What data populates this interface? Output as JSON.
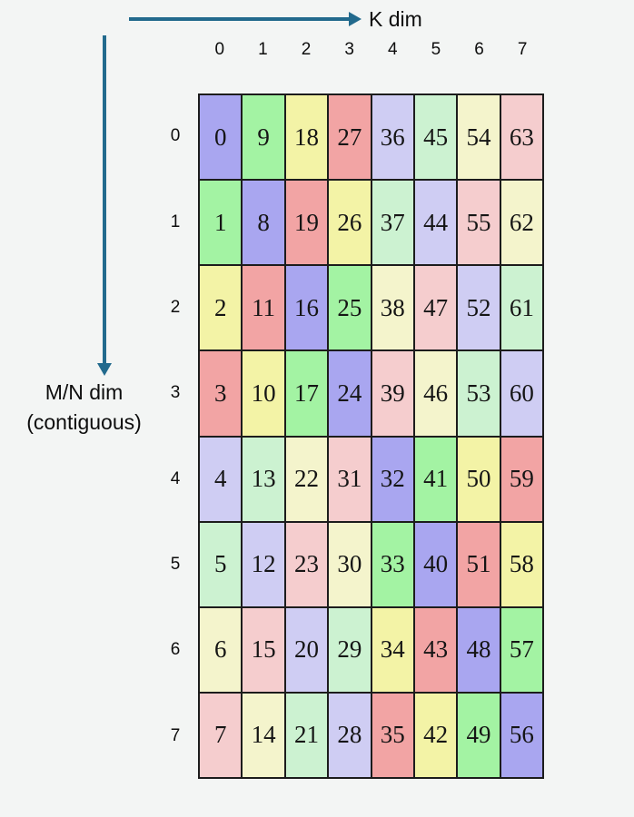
{
  "axes": {
    "k_dim_label": "K dim",
    "mn_dim_label_line1": "M/N dim",
    "mn_dim_label_line2": "(contiguous)"
  },
  "colors": {
    "background": "#f3f5f4",
    "arrow": "#226a8d",
    "grid_border": "#1c1c1c",
    "text": "#0d0d0d",
    "palette": {
      "P": "#a9a6f0",
      "G": "#a3f3a3",
      "Y": "#f3f3a6",
      "R": "#f2a4a4",
      "p": "#cfcdf3",
      "g": "#ccf2d1",
      "y": "#f4f4cc",
      "r": "#f5cdce"
    }
  },
  "col_headers": [
    "0",
    "1",
    "2",
    "3",
    "4",
    "5",
    "6",
    "7"
  ],
  "row_headers": [
    "0",
    "1",
    "2",
    "3",
    "4",
    "5",
    "6",
    "7"
  ],
  "grid": {
    "rows": [
      {
        "cells": [
          {
            "v": "0",
            "c": "P"
          },
          {
            "v": "9",
            "c": "G"
          },
          {
            "v": "18",
            "c": "Y"
          },
          {
            "v": "27",
            "c": "R"
          },
          {
            "v": "36",
            "c": "p"
          },
          {
            "v": "45",
            "c": "g"
          },
          {
            "v": "54",
            "c": "y"
          },
          {
            "v": "63",
            "c": "r"
          }
        ]
      },
      {
        "cells": [
          {
            "v": "1",
            "c": "G"
          },
          {
            "v": "8",
            "c": "P"
          },
          {
            "v": "19",
            "c": "R"
          },
          {
            "v": "26",
            "c": "Y"
          },
          {
            "v": "37",
            "c": "g"
          },
          {
            "v": "44",
            "c": "p"
          },
          {
            "v": "55",
            "c": "r"
          },
          {
            "v": "62",
            "c": "y"
          }
        ]
      },
      {
        "cells": [
          {
            "v": "2",
            "c": "Y"
          },
          {
            "v": "11",
            "c": "R"
          },
          {
            "v": "16",
            "c": "P"
          },
          {
            "v": "25",
            "c": "G"
          },
          {
            "v": "38",
            "c": "y"
          },
          {
            "v": "47",
            "c": "r"
          },
          {
            "v": "52",
            "c": "p"
          },
          {
            "v": "61",
            "c": "g"
          }
        ]
      },
      {
        "cells": [
          {
            "v": "3",
            "c": "R"
          },
          {
            "v": "10",
            "c": "Y"
          },
          {
            "v": "17",
            "c": "G"
          },
          {
            "v": "24",
            "c": "P"
          },
          {
            "v": "39",
            "c": "r"
          },
          {
            "v": "46",
            "c": "y"
          },
          {
            "v": "53",
            "c": "g"
          },
          {
            "v": "60",
            "c": "p"
          }
        ]
      },
      {
        "cells": [
          {
            "v": "4",
            "c": "p"
          },
          {
            "v": "13",
            "c": "g"
          },
          {
            "v": "22",
            "c": "y"
          },
          {
            "v": "31",
            "c": "r"
          },
          {
            "v": "32",
            "c": "P"
          },
          {
            "v": "41",
            "c": "G"
          },
          {
            "v": "50",
            "c": "Y"
          },
          {
            "v": "59",
            "c": "R"
          }
        ]
      },
      {
        "cells": [
          {
            "v": "5",
            "c": "g"
          },
          {
            "v": "12",
            "c": "p"
          },
          {
            "v": "23",
            "c": "r"
          },
          {
            "v": "30",
            "c": "y"
          },
          {
            "v": "33",
            "c": "G"
          },
          {
            "v": "40",
            "c": "P"
          },
          {
            "v": "51",
            "c": "R"
          },
          {
            "v": "58",
            "c": "Y"
          }
        ]
      },
      {
        "cells": [
          {
            "v": "6",
            "c": "y"
          },
          {
            "v": "15",
            "c": "r"
          },
          {
            "v": "20",
            "c": "p"
          },
          {
            "v": "29",
            "c": "g"
          },
          {
            "v": "34",
            "c": "Y"
          },
          {
            "v": "43",
            "c": "R"
          },
          {
            "v": "48",
            "c": "P"
          },
          {
            "v": "57",
            "c": "G"
          }
        ]
      },
      {
        "cells": [
          {
            "v": "7",
            "c": "r"
          },
          {
            "v": "14",
            "c": "y"
          },
          {
            "v": "21",
            "c": "g"
          },
          {
            "v": "28",
            "c": "p"
          },
          {
            "v": "35",
            "c": "R"
          },
          {
            "v": "42",
            "c": "Y"
          },
          {
            "v": "49",
            "c": "G"
          },
          {
            "v": "56",
            "c": "P"
          }
        ]
      }
    ]
  }
}
